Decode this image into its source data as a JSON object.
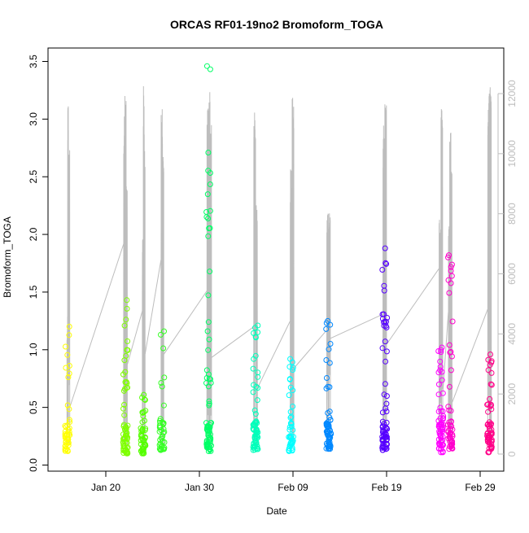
{
  "chart_data": {
    "type": "scatter",
    "title": "ORCAS RF01-19no2 Bromoform_TOGA",
    "xlabel": "Date",
    "ylabel": "Bromoform_TOGA",
    "x_ticks": [
      "Jan 20",
      "Jan 30",
      "Feb 09",
      "Feb 19",
      "Feb 29"
    ],
    "y_ticks": [
      "0.0",
      "0.5",
      "1.0",
      "1.5",
      "2.0",
      "2.5",
      "3.0",
      "3.5"
    ],
    "y_range": [
      0,
      3.5
    ],
    "y2_ticks": [
      "0",
      "2000",
      "4000",
      "6000",
      "8000",
      "10000",
      "12000"
    ],
    "y2_range": [
      0,
      12500
    ],
    "x_range": [
      "2016-01-15",
      "2016-03-02"
    ],
    "grid": false,
    "legend": "none",
    "series": [
      {
        "date": "2016-01-15.9",
        "color": "#ffff00",
        "y_min": 0.12,
        "y_max": 1.2,
        "n": 45
      },
      {
        "date": "2016-01-22.1",
        "color": "#7fff00",
        "y_min": 0.1,
        "y_max": 1.43,
        "n": 70
      },
      {
        "date": "2016-01-24.0",
        "color": "#55ff00",
        "y_min": 0.1,
        "y_max": 0.61,
        "n": 50
      },
      {
        "date": "2016-01-26.0",
        "color": "#33ff22",
        "y_min": 0.13,
        "y_max": 1.16,
        "n": 40
      },
      {
        "date": "2016-01-31.0",
        "color": "#00ff66",
        "y_min": 0.12,
        "y_max": 3.46,
        "n": 80
      },
      {
        "date": "2016-02-05.0",
        "color": "#00ffbb",
        "y_min": 0.13,
        "y_max": 1.21,
        "n": 65
      },
      {
        "date": "2016-02-08.8",
        "color": "#00ffff",
        "y_min": 0.12,
        "y_max": 0.92,
        "n": 45
      },
      {
        "date": "2016-02-12.8",
        "color": "#0088ff",
        "y_min": 0.14,
        "y_max": 1.25,
        "n": 65
      },
      {
        "date": "2016-02-18.8",
        "color": "#5500ff",
        "y_min": 0.13,
        "y_max": 1.88,
        "n": 70
      },
      {
        "date": "2016-02-24.8",
        "color": "#ff00ff",
        "y_min": 0.11,
        "y_max": 1.02,
        "n": 65
      },
      {
        "date": "2016-02-25.8",
        "color": "#ff00cc",
        "y_min": 0.14,
        "y_max": 1.82,
        "n": 55
      },
      {
        "date": "2016-03-01.0",
        "color": "#ff0088",
        "y_min": 0.11,
        "y_max": 0.96,
        "n": 60
      }
    ],
    "altitude_track": {
      "color": "#bdbdbd",
      "flights": [
        {
          "start": "2016-01-15.85",
          "end": "2016-01-16.15",
          "peaks": [
            2400,
            11800,
            8000,
            10200
          ]
        },
        {
          "start": "2016-01-21.9",
          "end": "2016-01-22.3",
          "peaks": [
            11500,
            12000,
            9000
          ]
        },
        {
          "start": "2016-01-23.9",
          "end": "2016-01-24.2",
          "peaks": [
            7500,
            12300,
            10200
          ]
        },
        {
          "start": "2016-01-25.9",
          "end": "2016-01-26.2",
          "peaks": [
            11600,
            9900
          ]
        },
        {
          "start": "2016-01-30.8",
          "end": "2016-01-31.3",
          "peaks": [
            11800,
            12400,
            11000
          ]
        },
        {
          "start": "2016-02-04.8",
          "end": "2016-02-05.2",
          "peaks": [
            11400,
            8300
          ]
        },
        {
          "start": "2016-02-08.7",
          "end": "2016-02-09.1",
          "peaks": [
            9700,
            12000
          ]
        },
        {
          "start": "2016-02-12.6",
          "end": "2016-02-13.0",
          "peaks": [
            8000,
            8200,
            8100
          ]
        },
        {
          "start": "2016-02-18.6",
          "end": "2016-02-19.0",
          "peaks": [
            11200,
            11800
          ]
        },
        {
          "start": "2016-02-24.6",
          "end": "2016-02-25.0",
          "peaks": [
            7800,
            11500
          ]
        },
        {
          "start": "2016-02-25.6",
          "end": "2016-02-26.0",
          "peaks": [
            7600,
            10800,
            9500
          ]
        },
        {
          "start": "2016-02-29.8",
          "end": "2016-03-01.2",
          "peaks": [
            12200,
            12500
          ]
        }
      ]
    }
  }
}
